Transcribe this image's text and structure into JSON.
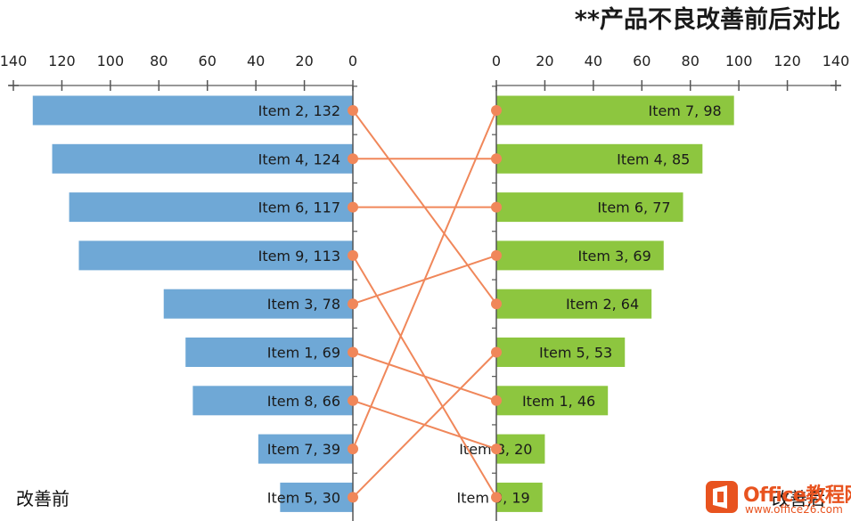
{
  "chart_data": {
    "type": "bar",
    "title": "**产品不良改善前后对比",
    "before": {
      "label": "改善前",
      "axis_ticks": [
        140,
        120,
        100,
        80,
        60,
        40,
        20,
        0
      ],
      "xlim": [
        0,
        140
      ],
      "bar_color": "#6fa8d6",
      "items": [
        {
          "label": "Item 2, 132",
          "name": "Item 2",
          "value": 132
        },
        {
          "label": "Item 4, 124",
          "name": "Item 4",
          "value": 124
        },
        {
          "label": "Item 6, 117",
          "name": "Item 6",
          "value": 117
        },
        {
          "label": "Item 9, 113",
          "name": "Item 9",
          "value": 113
        },
        {
          "label": "Item 3, 78",
          "name": "Item 3",
          "value": 78
        },
        {
          "label": "Item 1, 69",
          "name": "Item 1",
          "value": 69
        },
        {
          "label": "Item 8, 66",
          "name": "Item 8",
          "value": 66
        },
        {
          "label": "Item 7, 39",
          "name": "Item 7",
          "value": 39
        },
        {
          "label": "Item 5, 30",
          "name": "Item 5",
          "value": 30
        }
      ]
    },
    "after": {
      "label": "改善后",
      "axis_ticks": [
        0,
        20,
        40,
        60,
        80,
        100,
        120,
        140
      ],
      "xlim": [
        0,
        140
      ],
      "bar_color": "#8dc63f",
      "items": [
        {
          "label": "Item 7, 98",
          "name": "Item 7",
          "value": 98
        },
        {
          "label": "Item 4, 85",
          "name": "Item 4",
          "value": 85
        },
        {
          "label": "Item 6, 77",
          "name": "Item 6",
          "value": 77
        },
        {
          "label": "Item 3, 69",
          "name": "Item 3",
          "value": 69
        },
        {
          "label": "Item 2, 64",
          "name": "Item 2",
          "value": 64
        },
        {
          "label": "Item 5, 53",
          "name": "Item 5",
          "value": 53
        },
        {
          "label": "Item 1, 46",
          "name": "Item 1",
          "value": 46
        },
        {
          "label": "Item 8, 20",
          "name": "Item 8",
          "value": 20
        },
        {
          "label": "Item 9, 19",
          "name": "Item 9",
          "value": 19
        }
      ]
    },
    "connector_color": "#f0875a"
  },
  "watermark": {
    "brand": "Office教程网",
    "url": "www.office26.com"
  }
}
